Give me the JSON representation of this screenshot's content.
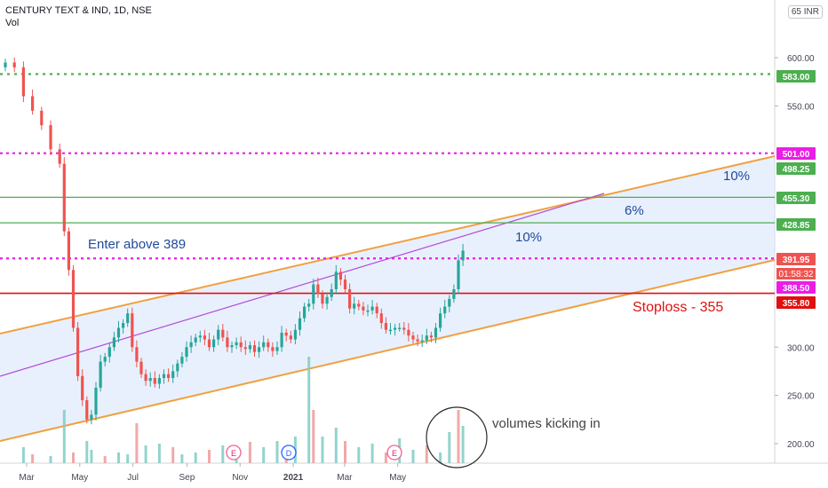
{
  "header": {
    "symbol": "CENTURY TEXT & IND, 1D, NSE",
    "indicator": "Vol",
    "currency": "INR",
    "currency_prefix": "65"
  },
  "chart_data": {
    "type": "candlestick",
    "y_axis": {
      "ticks": [
        {
          "value": 200,
          "label": "200.00"
        },
        {
          "value": 250,
          "label": "250.00"
        },
        {
          "value": 300,
          "label": "300.00"
        },
        {
          "value": 550,
          "label": "550.00"
        },
        {
          "value": 600,
          "label": "600.00"
        }
      ]
    },
    "x_axis": {
      "ticks": [
        {
          "date": "2020-03-01",
          "label": "Mar"
        },
        {
          "date": "2020-05-01",
          "label": "May"
        },
        {
          "date": "2020-07-01",
          "label": "Jul"
        },
        {
          "date": "2020-09-01",
          "label": "Sep"
        },
        {
          "date": "2020-11-01",
          "label": "Nov"
        },
        {
          "date": "2021-01-01",
          "label": "2021"
        },
        {
          "date": "2021-03-01",
          "label": "Mar"
        },
        {
          "date": "2021-05-01",
          "label": "May"
        }
      ]
    },
    "price_closes": [
      [
        0,
        595
      ],
      [
        2,
        590
      ],
      [
        4,
        560
      ],
      [
        6,
        545
      ],
      [
        8,
        530
      ],
      [
        10,
        505
      ],
      [
        12,
        490
      ],
      [
        13,
        420
      ],
      [
        14,
        380
      ],
      [
        15,
        320
      ],
      [
        16,
        270
      ],
      [
        17,
        245
      ],
      [
        18,
        225
      ],
      [
        19,
        230
      ],
      [
        20,
        258
      ],
      [
        21,
        285
      ],
      [
        22,
        290
      ],
      [
        23,
        300
      ],
      [
        24,
        310
      ],
      [
        25,
        320
      ],
      [
        26,
        325
      ],
      [
        27,
        335
      ],
      [
        28,
        300
      ],
      [
        29,
        285
      ],
      [
        30,
        272
      ],
      [
        31,
        265
      ],
      [
        32,
        268
      ],
      [
        33,
        262
      ],
      [
        34,
        268
      ],
      [
        35,
        272
      ],
      [
        36,
        268
      ],
      [
        37,
        275
      ],
      [
        38,
        283
      ],
      [
        39,
        290
      ],
      [
        40,
        300
      ],
      [
        41,
        305
      ],
      [
        42,
        310
      ],
      [
        43,
        312
      ],
      [
        44,
        308
      ],
      [
        45,
        300
      ],
      [
        46,
        308
      ],
      [
        47,
        318
      ],
      [
        48,
        310
      ],
      [
        49,
        300
      ],
      [
        50,
        302
      ],
      [
        51,
        305
      ],
      [
        52,
        300
      ],
      [
        53,
        298
      ],
      [
        54,
        302
      ],
      [
        55,
        295
      ],
      [
        56,
        300
      ],
      [
        57,
        305
      ],
      [
        58,
        300
      ],
      [
        59,
        296
      ],
      [
        60,
        300
      ],
      [
        61,
        315
      ],
      [
        62,
        312
      ],
      [
        63,
        308
      ],
      [
        64,
        318
      ],
      [
        65,
        330
      ],
      [
        66,
        342
      ],
      [
        67,
        345
      ],
      [
        68,
        365
      ],
      [
        69,
        355
      ],
      [
        70,
        345
      ],
      [
        71,
        352
      ],
      [
        72,
        360
      ],
      [
        73,
        378
      ],
      [
        74,
        370
      ],
      [
        75,
        360
      ],
      [
        76,
        340
      ],
      [
        77,
        345
      ],
      [
        78,
        342
      ],
      [
        79,
        338
      ],
      [
        80,
        338
      ],
      [
        81,
        342
      ],
      [
        82,
        335
      ],
      [
        83,
        325
      ],
      [
        84,
        318
      ],
      [
        85,
        318
      ],
      [
        86,
        320
      ],
      [
        87,
        320
      ],
      [
        88,
        318
      ],
      [
        89,
        312
      ],
      [
        90,
        308
      ],
      [
        91,
        306
      ],
      [
        92,
        307
      ],
      [
        93,
        312
      ],
      [
        94,
        310
      ],
      [
        95,
        320
      ],
      [
        96,
        335
      ],
      [
        97,
        342
      ],
      [
        98,
        350
      ],
      [
        99,
        360
      ],
      [
        100,
        390
      ],
      [
        101,
        400
      ]
    ],
    "volume": [
      [
        4,
        18
      ],
      [
        6,
        10
      ],
      [
        10,
        8
      ],
      [
        13,
        60
      ],
      [
        15,
        12
      ],
      [
        18,
        25
      ],
      [
        19,
        15
      ],
      [
        22,
        8
      ],
      [
        25,
        12
      ],
      [
        27,
        10
      ],
      [
        29,
        45
      ],
      [
        31,
        20
      ],
      [
        34,
        22
      ],
      [
        37,
        18
      ],
      [
        39,
        10
      ],
      [
        42,
        12
      ],
      [
        45,
        15
      ],
      [
        48,
        20
      ],
      [
        51,
        15
      ],
      [
        54,
        24
      ],
      [
        57,
        18
      ],
      [
        60,
        25
      ],
      [
        62,
        20
      ],
      [
        64,
        30
      ],
      [
        67,
        120
      ],
      [
        68,
        60
      ],
      [
        70,
        30
      ],
      [
        73,
        40
      ],
      [
        75,
        25
      ],
      [
        78,
        18
      ],
      [
        81,
        22
      ],
      [
        84,
        12
      ],
      [
        87,
        28
      ],
      [
        90,
        15
      ],
      [
        93,
        20
      ],
      [
        96,
        12
      ],
      [
        98,
        35
      ],
      [
        100,
        60
      ],
      [
        101,
        42
      ]
    ],
    "annotations": [
      {
        "label": "Enter above 389",
        "color": "#1e4a9a"
      },
      {
        "label": "10%",
        "color": "#1e4a9a"
      },
      {
        "label": "6%",
        "color": "#1e4a9a"
      },
      {
        "label": "10%",
        "color": "#1e4a9a"
      },
      {
        "label": "Stoploss - 355",
        "color": "#e01010"
      },
      {
        "label": "volumes kicking in",
        "color": "#444444"
      }
    ],
    "price_tags": [
      {
        "value": 583,
        "label": "583.00",
        "bg": "#4caf50",
        "fg": "#ffffff"
      },
      {
        "value": 501,
        "label": "501.00",
        "bg": "#e91ee4",
        "fg": "#ffffff"
      },
      {
        "value": 498.25,
        "label": "498.25",
        "bg": "#4caf50",
        "fg": "#ffffff"
      },
      {
        "value": 455.3,
        "label": "455.30",
        "bg": "#4caf50",
        "fg": "#ffffff"
      },
      {
        "value": 428.85,
        "label": "428.85",
        "bg": "#4caf50",
        "fg": "#ffffff"
      },
      {
        "value": 391.95,
        "label": "391.95",
        "bg": "#ef5350",
        "fg": "#ffffff"
      },
      {
        "value": 388.5,
        "label": "388.50",
        "bg": "#e91ee4",
        "fg": "#ffffff"
      },
      {
        "value": 355.8,
        "label": "355.80",
        "bg": "#e01010",
        "fg": "#ffffff"
      }
    ],
    "countdown": "01:58:32",
    "events": [
      "E",
      "D",
      "E"
    ]
  }
}
